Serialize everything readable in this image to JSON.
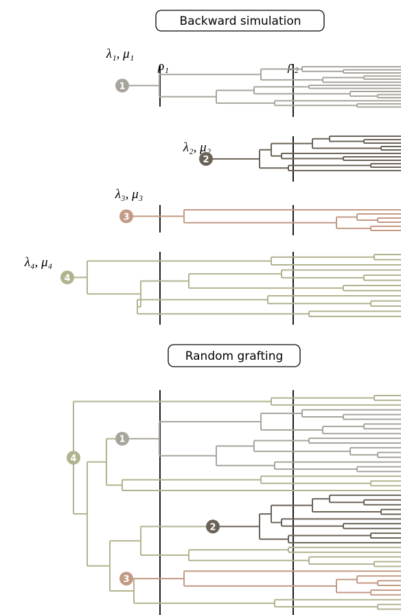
{
  "sections": [
    {
      "title": "Backward simulation"
    },
    {
      "title": "Random grafting"
    }
  ],
  "rates": [
    "λ₁, μ₁",
    "λ₂, μ₂",
    "λ₃, μ₃",
    "λ₄, μ₄"
  ],
  "sampling": [
    "ρ₁",
    "ρ₂"
  ],
  "nodes": [
    "1",
    "2",
    "3",
    "4"
  ],
  "grafted_nodes": [
    "1",
    "2",
    "3",
    "4"
  ]
}
